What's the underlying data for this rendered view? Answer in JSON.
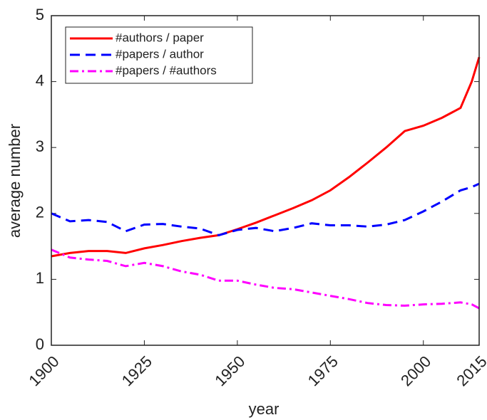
{
  "chart_data": {
    "type": "line",
    "x_label": "year",
    "y_label": "average number",
    "x": [
      1900,
      1905,
      1910,
      1915,
      1920,
      1925,
      1930,
      1935,
      1940,
      1945,
      1950,
      1955,
      1960,
      1965,
      1970,
      1975,
      1980,
      1985,
      1990,
      1995,
      2000,
      2005,
      2010,
      2013,
      2015
    ],
    "series": [
      {
        "name": "#authors / paper",
        "color": "#ff0000",
        "style": "solid",
        "values": [
          1.35,
          1.4,
          1.43,
          1.43,
          1.4,
          1.47,
          1.52,
          1.58,
          1.63,
          1.67,
          1.76,
          1.86,
          1.97,
          2.08,
          2.2,
          2.35,
          2.55,
          2.77,
          3.0,
          3.25,
          3.33,
          3.45,
          3.6,
          4.0,
          4.37
        ]
      },
      {
        "name": "#papers / author",
        "color": "#0000ff",
        "style": "dashed",
        "values": [
          2.0,
          1.88,
          1.9,
          1.87,
          1.73,
          1.83,
          1.84,
          1.8,
          1.77,
          1.67,
          1.75,
          1.78,
          1.73,
          1.78,
          1.85,
          1.82,
          1.82,
          1.8,
          1.83,
          1.9,
          2.03,
          2.18,
          2.35,
          2.4,
          2.45
        ]
      },
      {
        "name": "#papers / #authors",
        "color": "#ff00ff",
        "style": "dashdot",
        "values": [
          1.45,
          1.33,
          1.3,
          1.28,
          1.2,
          1.25,
          1.2,
          1.12,
          1.07,
          0.98,
          0.98,
          0.92,
          0.87,
          0.85,
          0.8,
          0.75,
          0.7,
          0.64,
          0.61,
          0.6,
          0.62,
          0.63,
          0.65,
          0.62,
          0.56
        ]
      }
    ],
    "xlim": [
      1900,
      2015
    ],
    "xticks": [
      1900,
      1925,
      1950,
      1975,
      2000,
      2015
    ],
    "ylim": [
      0,
      5
    ],
    "yticks": [
      0,
      1,
      2,
      3,
      4,
      5
    ],
    "grid": false,
    "legend": "upper left"
  }
}
